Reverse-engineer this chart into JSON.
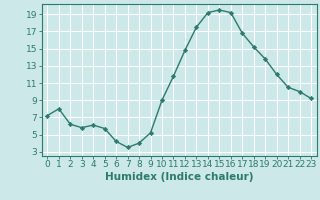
{
  "x": [
    0,
    1,
    2,
    3,
    4,
    5,
    6,
    7,
    8,
    9,
    10,
    11,
    12,
    13,
    14,
    15,
    16,
    17,
    18,
    19,
    20,
    21,
    22,
    23
  ],
  "y": [
    7.2,
    8.0,
    6.2,
    5.8,
    6.1,
    5.7,
    4.2,
    3.5,
    4.0,
    5.2,
    9.0,
    11.8,
    14.8,
    17.5,
    19.2,
    19.5,
    19.2,
    16.8,
    15.2,
    13.8,
    12.0,
    10.5,
    10.0,
    9.2
  ],
  "line_color": "#2d7a6e",
  "marker": "D",
  "marker_size": 2.2,
  "bg_color": "#cce8e8",
  "grid_color": "#ffffff",
  "xlabel": "Humidex (Indice chaleur)",
  "ylabel": "",
  "yticks": [
    3,
    5,
    7,
    9,
    11,
    13,
    15,
    17,
    19
  ],
  "xticks": [
    0,
    1,
    2,
    3,
    4,
    5,
    6,
    7,
    8,
    9,
    10,
    11,
    12,
    13,
    14,
    15,
    16,
    17,
    18,
    19,
    20,
    21,
    22,
    23
  ],
  "xlim": [
    -0.5,
    23.5
  ],
  "ylim": [
    2.5,
    20.2
  ],
  "tick_fontsize": 6.5,
  "xlabel_fontsize": 7.5,
  "linewidth": 1.0
}
